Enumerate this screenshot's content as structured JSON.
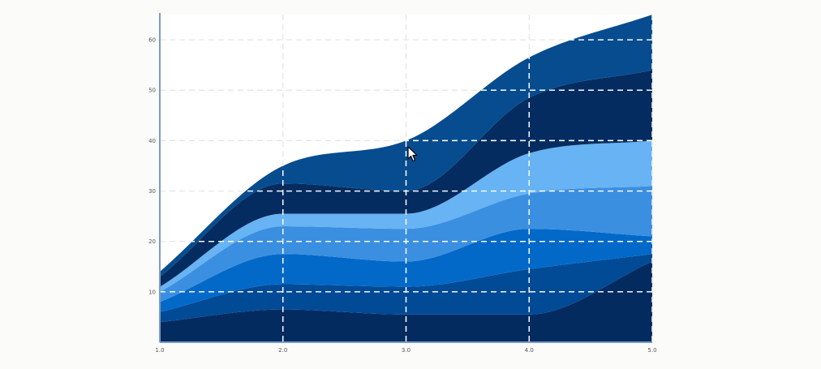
{
  "colors": {
    "background": "#fbfbf9",
    "plot_background": "#ffffff",
    "axis": "#7a9cc6",
    "grid_outside": "#e4e4e4",
    "grid_inside": "#ffffff"
  },
  "icons": {
    "cursor": "mouse-pointer-icon"
  },
  "chart_data": {
    "type": "area",
    "stacked": true,
    "interpolation": "smooth",
    "title": "",
    "xlabel": "",
    "ylabel": "",
    "x": [
      1.0,
      2.0,
      3.0,
      4.0,
      5.0
    ],
    "x_tick_labels": [
      "1.0",
      "2.0",
      "3.0",
      "4.0",
      "5.0"
    ],
    "y_ticks": [
      10,
      20,
      30,
      40,
      50,
      60
    ],
    "y_tick_labels": [
      "10",
      "20",
      "30",
      "40",
      "50",
      "60"
    ],
    "xlim": [
      1.0,
      5.0
    ],
    "ylim": [
      0,
      65
    ],
    "grid": true,
    "grid_style": "dashed",
    "legend": "none",
    "series": [
      {
        "values": [
          4,
          6.5,
          5.5,
          5.5,
          16
        ],
        "color": "#042b60"
      },
      {
        "values": [
          2,
          5,
          5.5,
          9,
          1.5
        ],
        "color": "#004a96"
      },
      {
        "values": [
          2,
          6,
          5,
          8,
          3.5
        ],
        "color": "#0369c9"
      },
      {
        "values": [
          2,
          5.5,
          6.5,
          7,
          10
        ],
        "color": "#3b8fe0"
      },
      {
        "values": [
          1,
          2.5,
          3,
          8,
          9
        ],
        "color": "#67b3f3"
      },
      {
        "values": [
          2,
          6,
          4.5,
          11,
          14
        ],
        "color": "#052c60"
      },
      {
        "values": [
          1,
          3.5,
          10,
          8,
          11
        ],
        "color": "#074c8f"
      }
    ]
  }
}
